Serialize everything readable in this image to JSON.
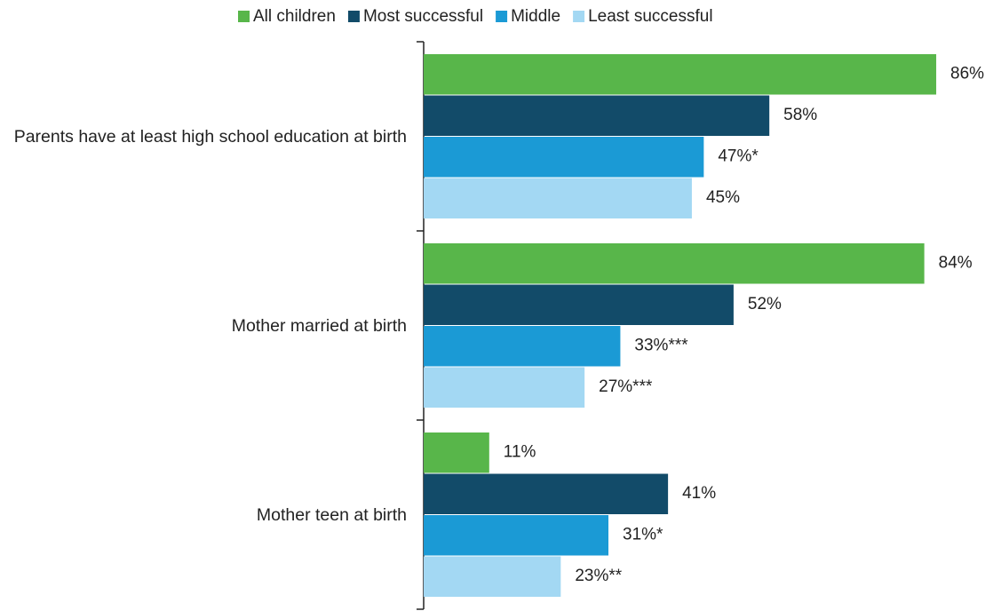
{
  "chart_data": {
    "type": "bar",
    "orientation": "horizontal",
    "categories": [
      "Parents have at least high school education at birth",
      "Mother married at birth",
      "Mother teen at birth"
    ],
    "xlim": [
      0,
      100
    ],
    "series": [
      {
        "name": "All children",
        "color": "#58b64a",
        "values": [
          86,
          84,
          11
        ],
        "value_labels": [
          "86%",
          "84%",
          "11%"
        ]
      },
      {
        "name": "Most successful",
        "color": "#124b69",
        "values": [
          58,
          52,
          41
        ],
        "value_labels": [
          "58%",
          "52%",
          "41%"
        ]
      },
      {
        "name": "Middle",
        "color": "#1b9ad5",
        "values": [
          47,
          33,
          31
        ],
        "value_labels": [
          "47%*",
          "33%***",
          "31%*"
        ]
      },
      {
        "name": "Least successful",
        "color": "#a3d8f3",
        "values": [
          45,
          27,
          23
        ],
        "value_labels": [
          "45%",
          "27%***",
          "23%**"
        ]
      }
    ]
  }
}
